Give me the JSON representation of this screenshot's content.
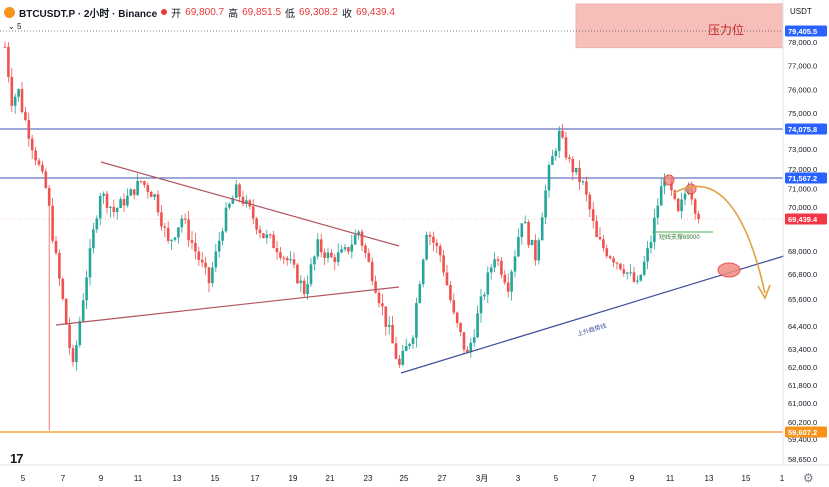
{
  "header": {
    "symbol": "BTCUSDT.P · 2小时 · Binance",
    "open_label": "开",
    "open_value": "69,800.7",
    "high_label": "高",
    "high_value": "69,851.5",
    "low_label": "低",
    "low_value": "69,308.2",
    "close_label": "收",
    "close_value": "69,439.4",
    "indicator_count": "5"
  },
  "price_axis": {
    "unit": "USDT",
    "ticks": [
      "78,000.0",
      "77,000.0",
      "76,000.0",
      "75,000.0",
      "73,000.0",
      "72,000.0",
      "71,000.0",
      "70,000.0",
      "68,000.0",
      "66,800.0",
      "65,600.0",
      "64,400.0",
      "63,400.0",
      "62,600.0",
      "61,800.0",
      "61,000.0",
      "60,200.0",
      "59,400.0",
      "58,650.0"
    ],
    "badges": [
      {
        "text": "79,405.5",
        "price": 79405.5,
        "color": "#2962ff"
      },
      {
        "text": "74,075.8",
        "price": 74075.8,
        "color": "#2962ff"
      },
      {
        "text": "71,567.2",
        "price": 71567.2,
        "color": "#2962ff"
      },
      {
        "text": "69,439.4",
        "price": 69439.4,
        "color": "#f23645"
      },
      {
        "text": "59,607.2",
        "price": 59607.2,
        "color": "#f7931a"
      }
    ]
  },
  "time_axis": {
    "ticks": [
      "5",
      "7",
      "9",
      "11",
      "13",
      "15",
      "17",
      "19",
      "21",
      "23",
      "25",
      "27",
      "3月",
      "3",
      "5",
      "7",
      "9",
      "11",
      "13",
      "15",
      "1"
    ]
  },
  "annotations": {
    "resistance_label": "压力位",
    "support_label": "短线支撑69000",
    "trendline_label": "上升趋势线"
  },
  "colors": {
    "up": "#26a69a",
    "down": "#ef5350",
    "horizontal_line": "#3f51b5",
    "wedge": "#b3545f",
    "trendline": "#3f4d9c",
    "forecast": "#e0a040",
    "resistance_zone": "#f28b82",
    "floor_line": "#f7931a"
  },
  "tv_logo": "17",
  "chart_data": {
    "type": "candlestick",
    "title": "BTCUSDT.P · 2小时 · Binance",
    "ylabel": "USDT",
    "price_path": [
      [
        0,
        77800
      ],
      [
        2,
        75600
      ],
      [
        4,
        75900
      ],
      [
        8,
        73200
      ],
      [
        12,
        71000
      ],
      [
        16,
        66500
      ],
      [
        20,
        62500
      ],
      [
        24,
        66800
      ],
      [
        28,
        70800
      ],
      [
        32,
        69800
      ],
      [
        36,
        70500
      ],
      [
        40,
        71400
      ],
      [
        44,
        70600
      ],
      [
        48,
        68300
      ],
      [
        52,
        69500
      ],
      [
        56,
        68000
      ],
      [
        60,
        66400
      ],
      [
        64,
        69200
      ],
      [
        68,
        70900
      ],
      [
        72,
        69800
      ],
      [
        76,
        68700
      ],
      [
        80,
        68200
      ],
      [
        84,
        67300
      ],
      [
        88,
        66000
      ],
      [
        92,
        68200
      ],
      [
        96,
        67600
      ],
      [
        100,
        67900
      ],
      [
        104,
        68900
      ],
      [
        108,
        66800
      ],
      [
        112,
        64600
      ],
      [
        116,
        62600
      ],
      [
        120,
        64200
      ],
      [
        124,
        69000
      ],
      [
        128,
        67800
      ],
      [
        132,
        64800
      ],
      [
        136,
        63100
      ],
      [
        140,
        65400
      ],
      [
        144,
        67800
      ],
      [
        148,
        66300
      ],
      [
        152,
        69500
      ],
      [
        156,
        67700
      ],
      [
        160,
        71900
      ],
      [
        163,
        73800
      ],
      [
        166,
        72300
      ],
      [
        170,
        71200
      ],
      [
        174,
        68500
      ],
      [
        178,
        67800
      ],
      [
        182,
        67100
      ],
      [
        186,
        66200
      ],
      [
        190,
        68500
      ],
      [
        194,
        71800
      ],
      [
        198,
        69600
      ],
      [
        201,
        71300
      ],
      [
        204,
        69400
      ]
    ],
    "horizontal_levels": [
      79405.5,
      74075.8,
      71567.2,
      59607.2
    ],
    "resistance_zone": [
      78300,
      80500
    ],
    "current_price": 69439.4
  }
}
